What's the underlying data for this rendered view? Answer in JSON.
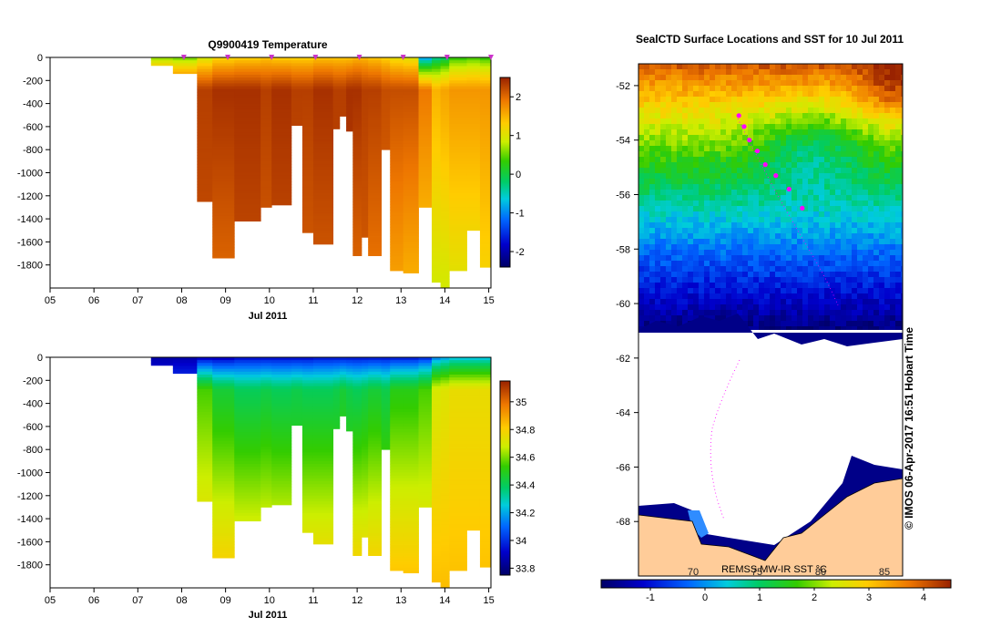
{
  "chart_data": [
    {
      "type": "heatmap",
      "title": "Q9900419  Temperature",
      "xlabel": "Jul 2011",
      "ylabel": "",
      "x_ticks": [
        "05",
        "06",
        "07",
        "08",
        "09",
        "10",
        "11",
        "12",
        "13",
        "14",
        "15"
      ],
      "xlim": [
        5,
        15.05
      ],
      "y_ticks": [
        0,
        -200,
        -400,
        -600,
        -800,
        -1000,
        -1200,
        -1400,
        -1600,
        -1800
      ],
      "ylim": [
        -2000,
        0
      ],
      "colorbar": {
        "ticks": [
          2,
          1,
          0,
          -1,
          -2
        ],
        "range": [
          -2.4,
          2.5
        ]
      },
      "stations": [
        8.05,
        9.05,
        10.05,
        11.05,
        12.05,
        13.05,
        14.05,
        15.05
      ],
      "profiles": [
        {
          "x0": 7.3,
          "x1": 7.8,
          "depth": -70,
          "surf": 0.5,
          "mid": 2.4,
          "deep": 2.4
        },
        {
          "x0": 7.8,
          "x1": 8.35,
          "depth": -140,
          "surf": 0.4,
          "mid": 2.3,
          "deep": 2.3
        },
        {
          "x0": 8.35,
          "x1": 8.7,
          "depth": -1250,
          "surf": 0.8,
          "mid": 2.3,
          "deep": 2.2
        },
        {
          "x0": 8.7,
          "x1": 9.2,
          "depth": -1740,
          "surf": 1.1,
          "mid": 2.4,
          "deep": 2.0
        },
        {
          "x0": 9.2,
          "x1": 9.8,
          "depth": -1420,
          "surf": 1.2,
          "mid": 2.4,
          "deep": 2.2
        },
        {
          "x0": 9.8,
          "x1": 10.05,
          "depth": -1300,
          "surf": 1.3,
          "mid": 2.3,
          "deep": 2.1
        },
        {
          "x0": 10.05,
          "x1": 10.5,
          "depth": -1280,
          "surf": 1.2,
          "mid": 2.4,
          "deep": 2.2
        },
        {
          "x0": 10.5,
          "x1": 10.75,
          "depth": -590,
          "surf": 1.2,
          "mid": 2.3,
          "deep": 2.2
        },
        {
          "x0": 10.75,
          "x1": 11.0,
          "depth": -1520,
          "surf": 1.2,
          "mid": 2.3,
          "deep": 2.1
        },
        {
          "x0": 11.0,
          "x1": 11.45,
          "depth": -1620,
          "surf": 1.3,
          "mid": 2.4,
          "deep": 2.1
        },
        {
          "x0": 11.45,
          "x1": 11.6,
          "depth": -620,
          "surf": 1.3,
          "mid": 2.3,
          "deep": 2.3
        },
        {
          "x0": 11.6,
          "x1": 11.75,
          "depth": -510,
          "surf": 1.3,
          "mid": 2.3,
          "deep": 2.3
        },
        {
          "x0": 11.75,
          "x1": 11.9,
          "depth": -640,
          "surf": 1.3,
          "mid": 2.4,
          "deep": 2.3
        },
        {
          "x0": 11.9,
          "x1": 12.1,
          "depth": -1720,
          "surf": 1.4,
          "mid": 2.4,
          "deep": 2.0
        },
        {
          "x0": 12.1,
          "x1": 12.25,
          "depth": -1560,
          "surf": 1.4,
          "mid": 2.3,
          "deep": 2.1
        },
        {
          "x0": 12.25,
          "x1": 12.55,
          "depth": -1720,
          "surf": 1.3,
          "mid": 2.3,
          "deep": 1.9
        },
        {
          "x0": 12.55,
          "x1": 12.75,
          "depth": -800,
          "surf": 1.2,
          "mid": 2.2,
          "deep": 2.0
        },
        {
          "x0": 12.75,
          "x1": 13.05,
          "depth": -1850,
          "surf": 1.0,
          "mid": 2.2,
          "deep": 1.6
        },
        {
          "x0": 13.05,
          "x1": 13.4,
          "depth": -1870,
          "surf": 0.9,
          "mid": 2.2,
          "deep": 1.5
        },
        {
          "x0": 13.4,
          "x1": 13.7,
          "depth": -1300,
          "surf": -1.1,
          "mid": 1.9,
          "deep": 1.3
        },
        {
          "x0": 13.7,
          "x1": 13.9,
          "depth": -1950,
          "surf": -0.5,
          "mid": 1.5,
          "deep": 0.9
        },
        {
          "x0": 13.9,
          "x1": 14.1,
          "depth": -2000,
          "surf": -0.3,
          "mid": 1.6,
          "deep": 0.9
        },
        {
          "x0": 14.1,
          "x1": 14.5,
          "depth": -1850,
          "surf": 0.2,
          "mid": 1.7,
          "deep": 1.0
        },
        {
          "x0": 14.5,
          "x1": 14.8,
          "depth": -1500,
          "surf": 0.3,
          "mid": 1.7,
          "deep": 1.0
        },
        {
          "x0": 14.8,
          "x1": 15.05,
          "depth": -1820,
          "surf": 0.2,
          "mid": 1.7,
          "deep": 1.2
        }
      ]
    },
    {
      "type": "heatmap",
      "title": "",
      "xlabel": "Jul 2011",
      "ylabel": "",
      "x_ticks": [
        "05",
        "06",
        "07",
        "08",
        "09",
        "10",
        "11",
        "12",
        "13",
        "14",
        "15"
      ],
      "xlim": [
        5,
        15.05
      ],
      "y_ticks": [
        0,
        -200,
        -400,
        -600,
        -800,
        -1000,
        -1200,
        -1400,
        -1600,
        -1800
      ],
      "ylim": [
        -2000,
        0
      ],
      "colorbar": {
        "ticks": [
          35,
          34.8,
          34.6,
          34.4,
          34.2,
          34,
          33.8
        ],
        "range": [
          33.75,
          35.15
        ]
      },
      "profiles": [
        {
          "x0": 7.3,
          "x1": 7.8,
          "depth": -70,
          "surf": 33.85,
          "mid": 34.0,
          "deep": 34.0
        },
        {
          "x0": 7.8,
          "x1": 8.35,
          "depth": -140,
          "surf": 33.85,
          "mid": 34.05,
          "deep": 34.05
        },
        {
          "x0": 8.35,
          "x1": 8.7,
          "depth": -1250,
          "surf": 33.85,
          "mid": 34.55,
          "deep": 34.83
        },
        {
          "x0": 8.7,
          "x1": 9.2,
          "depth": -1740,
          "surf": 33.85,
          "mid": 34.45,
          "deep": 34.84
        },
        {
          "x0": 9.2,
          "x1": 9.8,
          "depth": -1420,
          "surf": 33.9,
          "mid": 34.4,
          "deep": 34.82
        },
        {
          "x0": 9.8,
          "x1": 10.05,
          "depth": -1300,
          "surf": 33.9,
          "mid": 34.42,
          "deep": 34.82
        },
        {
          "x0": 10.05,
          "x1": 10.5,
          "depth": -1280,
          "surf": 33.9,
          "mid": 34.4,
          "deep": 34.82
        },
        {
          "x0": 10.5,
          "x1": 10.75,
          "depth": -590,
          "surf": 33.9,
          "mid": 34.42,
          "deep": 34.7
        },
        {
          "x0": 10.75,
          "x1": 11.0,
          "depth": -1520,
          "surf": 33.9,
          "mid": 34.4,
          "deep": 34.83
        },
        {
          "x0": 11.0,
          "x1": 11.45,
          "depth": -1620,
          "surf": 33.92,
          "mid": 34.4,
          "deep": 34.83
        },
        {
          "x0": 11.45,
          "x1": 11.6,
          "depth": -620,
          "surf": 33.92,
          "mid": 34.42,
          "deep": 34.72
        },
        {
          "x0": 11.6,
          "x1": 11.75,
          "depth": -510,
          "surf": 33.92,
          "mid": 34.45,
          "deep": 34.7
        },
        {
          "x0": 11.75,
          "x1": 11.9,
          "depth": -640,
          "surf": 33.92,
          "mid": 34.42,
          "deep": 34.72
        },
        {
          "x0": 11.9,
          "x1": 12.1,
          "depth": -1720,
          "surf": 33.92,
          "mid": 34.4,
          "deep": 34.84
        },
        {
          "x0": 12.1,
          "x1": 12.25,
          "depth": -1560,
          "surf": 33.92,
          "mid": 34.42,
          "deep": 34.83
        },
        {
          "x0": 12.25,
          "x1": 12.55,
          "depth": -1720,
          "surf": 33.92,
          "mid": 34.45,
          "deep": 34.84
        },
        {
          "x0": 12.55,
          "x1": 12.75,
          "depth": -800,
          "surf": 33.92,
          "mid": 34.42,
          "deep": 34.75
        },
        {
          "x0": 12.75,
          "x1": 13.05,
          "depth": -1850,
          "surf": 33.92,
          "mid": 34.5,
          "deep": 34.85
        },
        {
          "x0": 13.05,
          "x1": 13.4,
          "depth": -1870,
          "surf": 33.92,
          "mid": 34.5,
          "deep": 34.85
        },
        {
          "x0": 13.4,
          "x1": 13.7,
          "depth": -1300,
          "surf": 33.95,
          "mid": 34.55,
          "deep": 34.8
        },
        {
          "x0": 13.7,
          "x1": 13.9,
          "depth": -1950,
          "surf": 34.1,
          "mid": 34.7,
          "deep": 34.84
        },
        {
          "x0": 13.9,
          "x1": 14.1,
          "depth": -2000,
          "surf": 34.15,
          "mid": 34.72,
          "deep": 34.84
        },
        {
          "x0": 14.1,
          "x1": 14.5,
          "depth": -1850,
          "surf": 34.2,
          "mid": 34.75,
          "deep": 34.84
        },
        {
          "x0": 14.5,
          "x1": 14.8,
          "depth": -1500,
          "surf": 34.2,
          "mid": 34.75,
          "deep": 34.84
        },
        {
          "x0": 14.8,
          "x1": 15.05,
          "depth": -1820,
          "surf": 34.2,
          "mid": 34.75,
          "deep": 34.84
        }
      ]
    },
    {
      "type": "heatmap",
      "title": "SealCTD Surface Locations and SST for 10 Jul 2011",
      "y_ticks": [
        -52,
        -54,
        -56,
        -58,
        -60,
        -62,
        -64,
        -66,
        -68
      ],
      "ylim": [
        -70,
        -51.2
      ],
      "colorbar": {
        "ticks": [
          -1,
          0,
          1,
          2,
          3,
          4
        ],
        "range": [
          -1.9,
          4.5
        ],
        "lon_ticks": [
          "70",
          "75",
          "80",
          "85"
        ],
        "label": "REMSS MW-IR SST °C"
      },
      "sst_field": {
        "north_lat": -51.2,
        "south_lat": -61.0,
        "max_north": 4.0,
        "min_south": -1.8
      },
      "track_positions": [
        {
          "lon": 0.38,
          "lat": -53.1
        },
        {
          "lon": 0.4,
          "lat": -53.5
        },
        {
          "lon": 0.42,
          "lat": -54.0
        },
        {
          "lon": 0.45,
          "lat": -54.4
        },
        {
          "lon": 0.48,
          "lat": -54.9
        },
        {
          "lon": 0.52,
          "lat": -55.3
        },
        {
          "lon": 0.57,
          "lat": -55.8
        },
        {
          "lon": 0.62,
          "lat": -56.5
        }
      ]
    }
  ],
  "credit": "© IMOS 06-Apr-2017 16:51 Hobart Time"
}
